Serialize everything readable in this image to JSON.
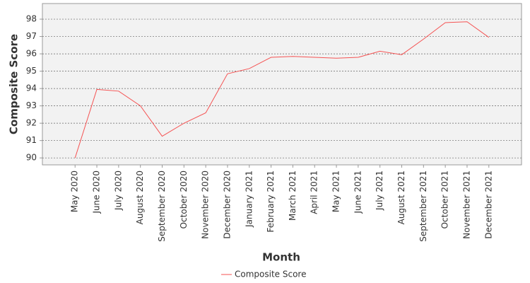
{
  "chart_data": {
    "type": "line",
    "x_label": "Month",
    "y_label": "Composite Score",
    "categories": [
      "May 2020",
      "June 2020",
      "July 2020",
      "August 2020",
      "September 2020",
      "October 2020",
      "November 2020",
      "December 2020",
      "January 2021",
      "February 2021",
      "March 2021",
      "April 2021",
      "May 2021",
      "June 2021",
      "July 2021",
      "August 2021",
      "September 2021",
      "October 2021",
      "November 2021",
      "December 2021"
    ],
    "series": [
      {
        "name": "Composite Score",
        "color": "#f55353",
        "values": [
          90.0,
          93.95,
          93.85,
          93.0,
          91.25,
          92.0,
          92.6,
          94.85,
          95.15,
          95.8,
          95.85,
          95.8,
          95.75,
          95.8,
          96.15,
          95.95,
          96.85,
          97.8,
          97.85,
          96.95
        ]
      }
    ],
    "ylim": [
      89.6,
      98.9
    ],
    "yticks": [
      90,
      91,
      92,
      93,
      94,
      95,
      96,
      97,
      98
    ],
    "grid": true,
    "legend": "bottom"
  }
}
